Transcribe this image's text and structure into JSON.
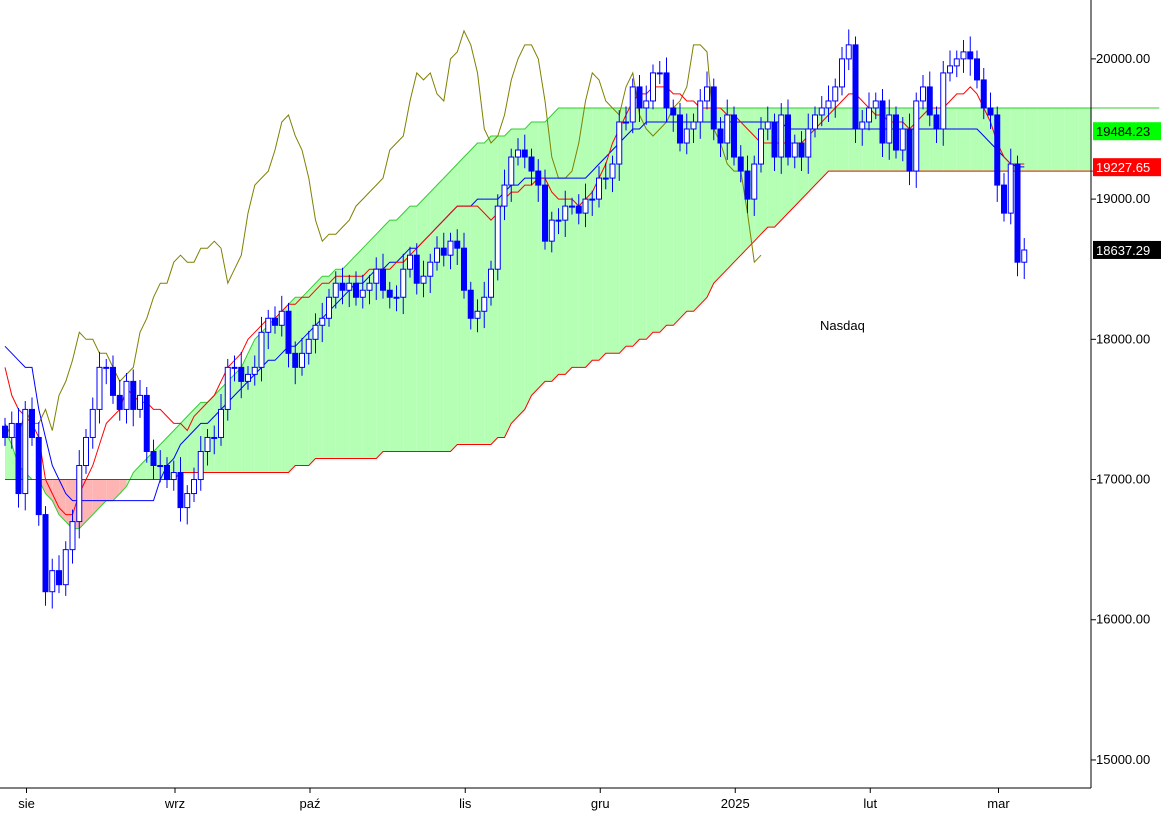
{
  "chart_data": {
    "type": "candlestick",
    "title": "Nasdaq",
    "ylim": [
      14800,
      20420
    ],
    "y_ticks": [
      {
        "value": 15000,
        "label": "15000.00"
      },
      {
        "value": 16000,
        "label": "16000.00"
      },
      {
        "value": 17000,
        "label": "17000.00"
      },
      {
        "value": 18000,
        "label": "18000.00"
      },
      {
        "value": 19000,
        "label": "19000.00"
      },
      {
        "value": 20000,
        "label": "20000.00"
      }
    ],
    "x_ticks": [
      {
        "index": 2,
        "label": "sie"
      },
      {
        "index": 24,
        "label": "wrz"
      },
      {
        "index": 44,
        "label": "paź"
      },
      {
        "index": 67,
        "label": "lis"
      },
      {
        "index": 87,
        "label": "gru"
      },
      {
        "index": 107,
        "label": "2025"
      },
      {
        "index": 127,
        "label": "lut"
      },
      {
        "index": 146,
        "label": "mar"
      }
    ],
    "price_badges": [
      {
        "label": "19484.23",
        "value": 19484.23,
        "color": "#00ff00"
      },
      {
        "label": "19227.65",
        "value": 19227.65,
        "color": "#ff0000"
      },
      {
        "label": "18637.29",
        "value": 18637.29,
        "color": "#000000"
      }
    ],
    "colors": {
      "up_candle": "#ffffff",
      "down_candle": "#0000ff",
      "candle_outline": "#0000ff",
      "tenkan": "#ff0000",
      "kijun": "#0000ff",
      "chikou": "#808000",
      "cloud_bull": "#b4ffb4",
      "cloud_bull_edge": "#33cc33",
      "cloud_bear": "#ffb4b4"
    },
    "series": [
      {
        "name": "Close",
        "values": [
          17300,
          17400,
          16900,
          17500,
          17300,
          16750,
          16200,
          16350,
          16250,
          16500,
          16700,
          17100,
          17300,
          17500,
          17800,
          17800,
          17600,
          17500,
          17700,
          17500,
          17600,
          17200,
          17100,
          17100,
          17000,
          17050,
          16800,
          16900,
          17000,
          17200,
          17300,
          17300,
          17500,
          17800,
          17800,
          17700,
          17750,
          17800,
          18050,
          18150,
          18100,
          18200,
          17900,
          17800,
          17900,
          18000,
          18100,
          18150,
          18300,
          18400,
          18350,
          18400,
          18300,
          18350,
          18400,
          18500,
          18350,
          18300,
          18300,
          18500,
          18600,
          18400,
          18450,
          18550,
          18650,
          18600,
          18700,
          18650,
          18350,
          18150,
          18200,
          18300,
          18500,
          18950,
          19100,
          19300,
          19350,
          19300,
          19200,
          19100,
          18700,
          18850,
          18850,
          18950,
          18950,
          18900,
          19000,
          19000,
          19150,
          19150,
          19250,
          19550,
          19550,
          19800,
          19650,
          19700,
          19900,
          19900,
          19650,
          19600,
          19400,
          19500,
          19550,
          19700,
          19800,
          19500,
          19400,
          19600,
          19300,
          19200,
          19000,
          19250,
          19500,
          19550,
          19300,
          19600,
          19300,
          19400,
          19300,
          19500,
          19600,
          19650,
          19700,
          19800,
          20000,
          20100,
          19500,
          19550,
          19650,
          19700,
          19400,
          19600,
          19350,
          19500,
          19200,
          19700,
          19800,
          19600,
          19500,
          19900,
          19950,
          20000,
          20050,
          20000,
          19850,
          19650,
          19600,
          19100,
          18900,
          19250,
          18550,
          18637
        ]
      },
      {
        "name": "Tenkan",
        "values": [
          17800,
          17600,
          17500,
          17450,
          17400,
          17300,
          17000,
          16900,
          16800,
          16750,
          16750,
          16900,
          17000,
          17100,
          17250,
          17400,
          17450,
          17500,
          17650,
          17600,
          17550,
          17550,
          17500,
          17500,
          17450,
          17400,
          17400,
          17350,
          17450,
          17500,
          17550,
          17600,
          17700,
          17800,
          17850,
          17900,
          18000,
          18050,
          18100,
          18150,
          18150,
          18200,
          18250,
          18250,
          18300,
          18300,
          18350,
          18400,
          18400,
          18450,
          18450,
          18450,
          18450,
          18450,
          18500,
          18500,
          18500,
          18500,
          18550,
          18550,
          18600,
          18650,
          18700,
          18750,
          18800,
          18850,
          18900,
          18950,
          18950,
          18950,
          18950,
          18900,
          18850,
          18900,
          19000,
          19050,
          19050,
          19100,
          19100,
          19150,
          19150,
          19050,
          19000,
          19000,
          19000,
          18950,
          19000,
          19050,
          19150,
          19250,
          19400,
          19500,
          19600,
          19700,
          19750,
          19750,
          19800,
          19800,
          19800,
          19750,
          19750,
          19700,
          19700,
          19650,
          19650,
          19650,
          19650,
          19600,
          19600,
          19550,
          19500,
          19450,
          19400,
          19400,
          19400,
          19400,
          19400,
          19400,
          19400,
          19450,
          19500,
          19550,
          19600,
          19650,
          19700,
          19750,
          19750,
          19700,
          19650,
          19600,
          19600,
          19550,
          19550,
          19550,
          19500,
          19550,
          19600,
          19650,
          19650,
          19650,
          19700,
          19750,
          19750,
          19800,
          19750,
          19650,
          19550,
          19400,
          19300,
          19250,
          19250,
          19250
        ]
      },
      {
        "name": "Kijun",
        "values": [
          17950,
          17900,
          17850,
          17800,
          17800,
          17500,
          17300,
          17100,
          17000,
          16900,
          16850,
          16850,
          16850,
          16850,
          16850,
          16850,
          16850,
          16850,
          16850,
          16850,
          16850,
          16850,
          16850,
          17000,
          17100,
          17150,
          17250,
          17300,
          17350,
          17400,
          17400,
          17450,
          17500,
          17550,
          17600,
          17650,
          17700,
          17750,
          17800,
          17850,
          17850,
          17900,
          17950,
          17950,
          18000,
          18050,
          18100,
          18150,
          18200,
          18250,
          18300,
          18350,
          18400,
          18400,
          18450,
          18500,
          18500,
          18550,
          18550,
          18600,
          18650,
          18650,
          18700,
          18750,
          18800,
          18850,
          18900,
          18950,
          18950,
          18950,
          19000,
          19000,
          19000,
          19000,
          19050,
          19100,
          19100,
          19150,
          19150,
          19150,
          19150,
          19150,
          19150,
          19150,
          19150,
          19150,
          19150,
          19200,
          19250,
          19300,
          19350,
          19400,
          19450,
          19500,
          19500,
          19550,
          19550,
          19550,
          19550,
          19550,
          19550,
          19550,
          19550,
          19550,
          19550,
          19550,
          19550,
          19550,
          19550,
          19550,
          19550,
          19550,
          19550,
          19550,
          19550,
          19550,
          19500,
          19500,
          19500,
          19500,
          19500,
          19500,
          19500,
          19500,
          19500,
          19500,
          19500,
          19500,
          19500,
          19500,
          19500,
          19500,
          19500,
          19500,
          19500,
          19500,
          19500,
          19500,
          19500,
          19500,
          19500,
          19500,
          19500,
          19500,
          19500,
          19450,
          19400,
          19350,
          19300,
          19250,
          19230,
          19230
        ]
      },
      {
        "name": "Chikou",
        "values": [
          17400,
          17300,
          17300,
          17500,
          17400,
          17400,
          17500,
          17350,
          17600,
          17700,
          17850,
          18050,
          18000,
          18000,
          17900,
          17900,
          17800,
          17700,
          17750,
          17800,
          18050,
          18150,
          18300,
          18400,
          18400,
          18550,
          18600,
          18550,
          18550,
          18650,
          18650,
          18700,
          18650,
          18400,
          18500,
          18600,
          18900,
          19100,
          19150,
          19200,
          19350,
          19550,
          19600,
          19450,
          19350,
          19150,
          18850,
          18700,
          18750,
          18750,
          18800,
          18850,
          18950,
          19000,
          19050,
          19100,
          19150,
          19350,
          19400,
          19450,
          19700,
          19900,
          19850,
          19900,
          19750,
          19700,
          20000,
          20050,
          20200,
          20100,
          19900,
          19500,
          19400,
          19450,
          19600,
          19850,
          20000,
          20100,
          20100,
          20000,
          19700,
          19300,
          19150,
          19150,
          19200,
          19400,
          19700,
          19900,
          19850,
          19700,
          19650,
          19600,
          19800,
          19900,
          19600,
          19500,
          19450,
          19500,
          19550,
          19650,
          19700,
          19800,
          20100,
          20100,
          20050,
          19500,
          19400,
          19250,
          19200,
          19200,
          18900,
          18550,
          18600
        ]
      },
      {
        "name": "Senkou A",
        "values": [
          17350,
          17250,
          17100,
          17050,
          17000,
          17000,
          16900,
          16850,
          16750,
          16700,
          16650,
          16650,
          16700,
          16750,
          16800,
          16850,
          16850,
          16900,
          16950,
          17050,
          17100,
          17150,
          17200,
          17250,
          17300,
          17350,
          17400,
          17450,
          17500,
          17550,
          17550,
          17600,
          17650,
          17700,
          17750,
          17800,
          17900,
          18000,
          18050,
          18100,
          18150,
          18200,
          18250,
          18300,
          18300,
          18350,
          18400,
          18450,
          18450,
          18500,
          18500,
          18550,
          18600,
          18650,
          18700,
          18750,
          18800,
          18850,
          18850,
          18900,
          18950,
          18950,
          19000,
          19050,
          19100,
          19150,
          19200,
          19250,
          19300,
          19350,
          19400,
          19400,
          19450,
          19450,
          19450,
          19500,
          19500,
          19500,
          19550,
          19550,
          19550,
          19600,
          19650,
          19650,
          19650,
          19650,
          19650,
          19650,
          19650,
          19650,
          19650,
          19650,
          19650,
          19650,
          19650,
          19650,
          19650,
          19650,
          19650,
          19650,
          19650,
          19650,
          19650,
          19650,
          19650,
          19650,
          19650,
          19650,
          19650,
          19650,
          19650,
          19650,
          19650,
          19650,
          19650,
          19650,
          19650,
          19650,
          19650,
          19650,
          19650,
          19650,
          19650,
          19650,
          19650,
          19650,
          19650,
          19650,
          19650,
          19650,
          19650,
          19650,
          19650,
          19650,
          19650,
          19650,
          19650,
          19650,
          19650,
          19650,
          19650,
          19650,
          19650,
          19650,
          19650,
          19650,
          19650,
          19650,
          19650,
          19650,
          19650,
          19650,
          19650,
          19650,
          19650,
          19650,
          19650,
          19650,
          19650,
          19650,
          19650,
          19650,
          19650,
          19650,
          19650,
          19650,
          19650,
          19650,
          19650,
          19650,
          19650,
          19650
        ]
      },
      {
        "name": "Senkou B",
        "values": [
          17000,
          17000,
          17000,
          17000,
          17000,
          17000,
          17000,
          17000,
          17000,
          17000,
          17000,
          17000,
          17000,
          17000,
          17000,
          17000,
          17000,
          17000,
          17000,
          17000,
          17000,
          17000,
          17000,
          17000,
          17000,
          17000,
          17050,
          17050,
          17050,
          17050,
          17050,
          17050,
          17050,
          17050,
          17050,
          17050,
          17050,
          17050,
          17050,
          17050,
          17050,
          17050,
          17050,
          17100,
          17100,
          17100,
          17150,
          17150,
          17150,
          17150,
          17150,
          17150,
          17150,
          17150,
          17150,
          17150,
          17200,
          17200,
          17200,
          17200,
          17200,
          17200,
          17200,
          17200,
          17200,
          17200,
          17200,
          17250,
          17250,
          17250,
          17250,
          17250,
          17250,
          17300,
          17300,
          17400,
          17450,
          17500,
          17600,
          17650,
          17700,
          17700,
          17750,
          17750,
          17800,
          17800,
          17800,
          17850,
          17850,
          17900,
          17900,
          17900,
          17950,
          17950,
          18000,
          18000,
          18050,
          18050,
          18100,
          18100,
          18150,
          18200,
          18200,
          18250,
          18300,
          18400,
          18450,
          18500,
          18550,
          18600,
          18650,
          18700,
          18750,
          18800,
          18800,
          18850,
          18900,
          18950,
          19000,
          19050,
          19100,
          19150,
          19200,
          19200,
          19200,
          19200,
          19200,
          19200,
          19200,
          19200,
          19200,
          19200,
          19200,
          19200,
          19200,
          19200,
          19200,
          19200,
          19200,
          19200,
          19200,
          19200,
          19200,
          19200,
          19200,
          19200,
          19200,
          19200,
          19200,
          19200,
          19200,
          19200,
          19200,
          19200,
          19200,
          19200,
          19200,
          19200,
          19200,
          19200,
          19200,
          19200,
          19200,
          19200,
          19200,
          19200,
          19200,
          19200,
          19200,
          19200,
          19200,
          19200,
          19200,
          19200,
          19200,
          19200,
          19200,
          19200,
          19200,
          19200,
          19200,
          19200,
          19200,
          19200
        ]
      }
    ]
  }
}
